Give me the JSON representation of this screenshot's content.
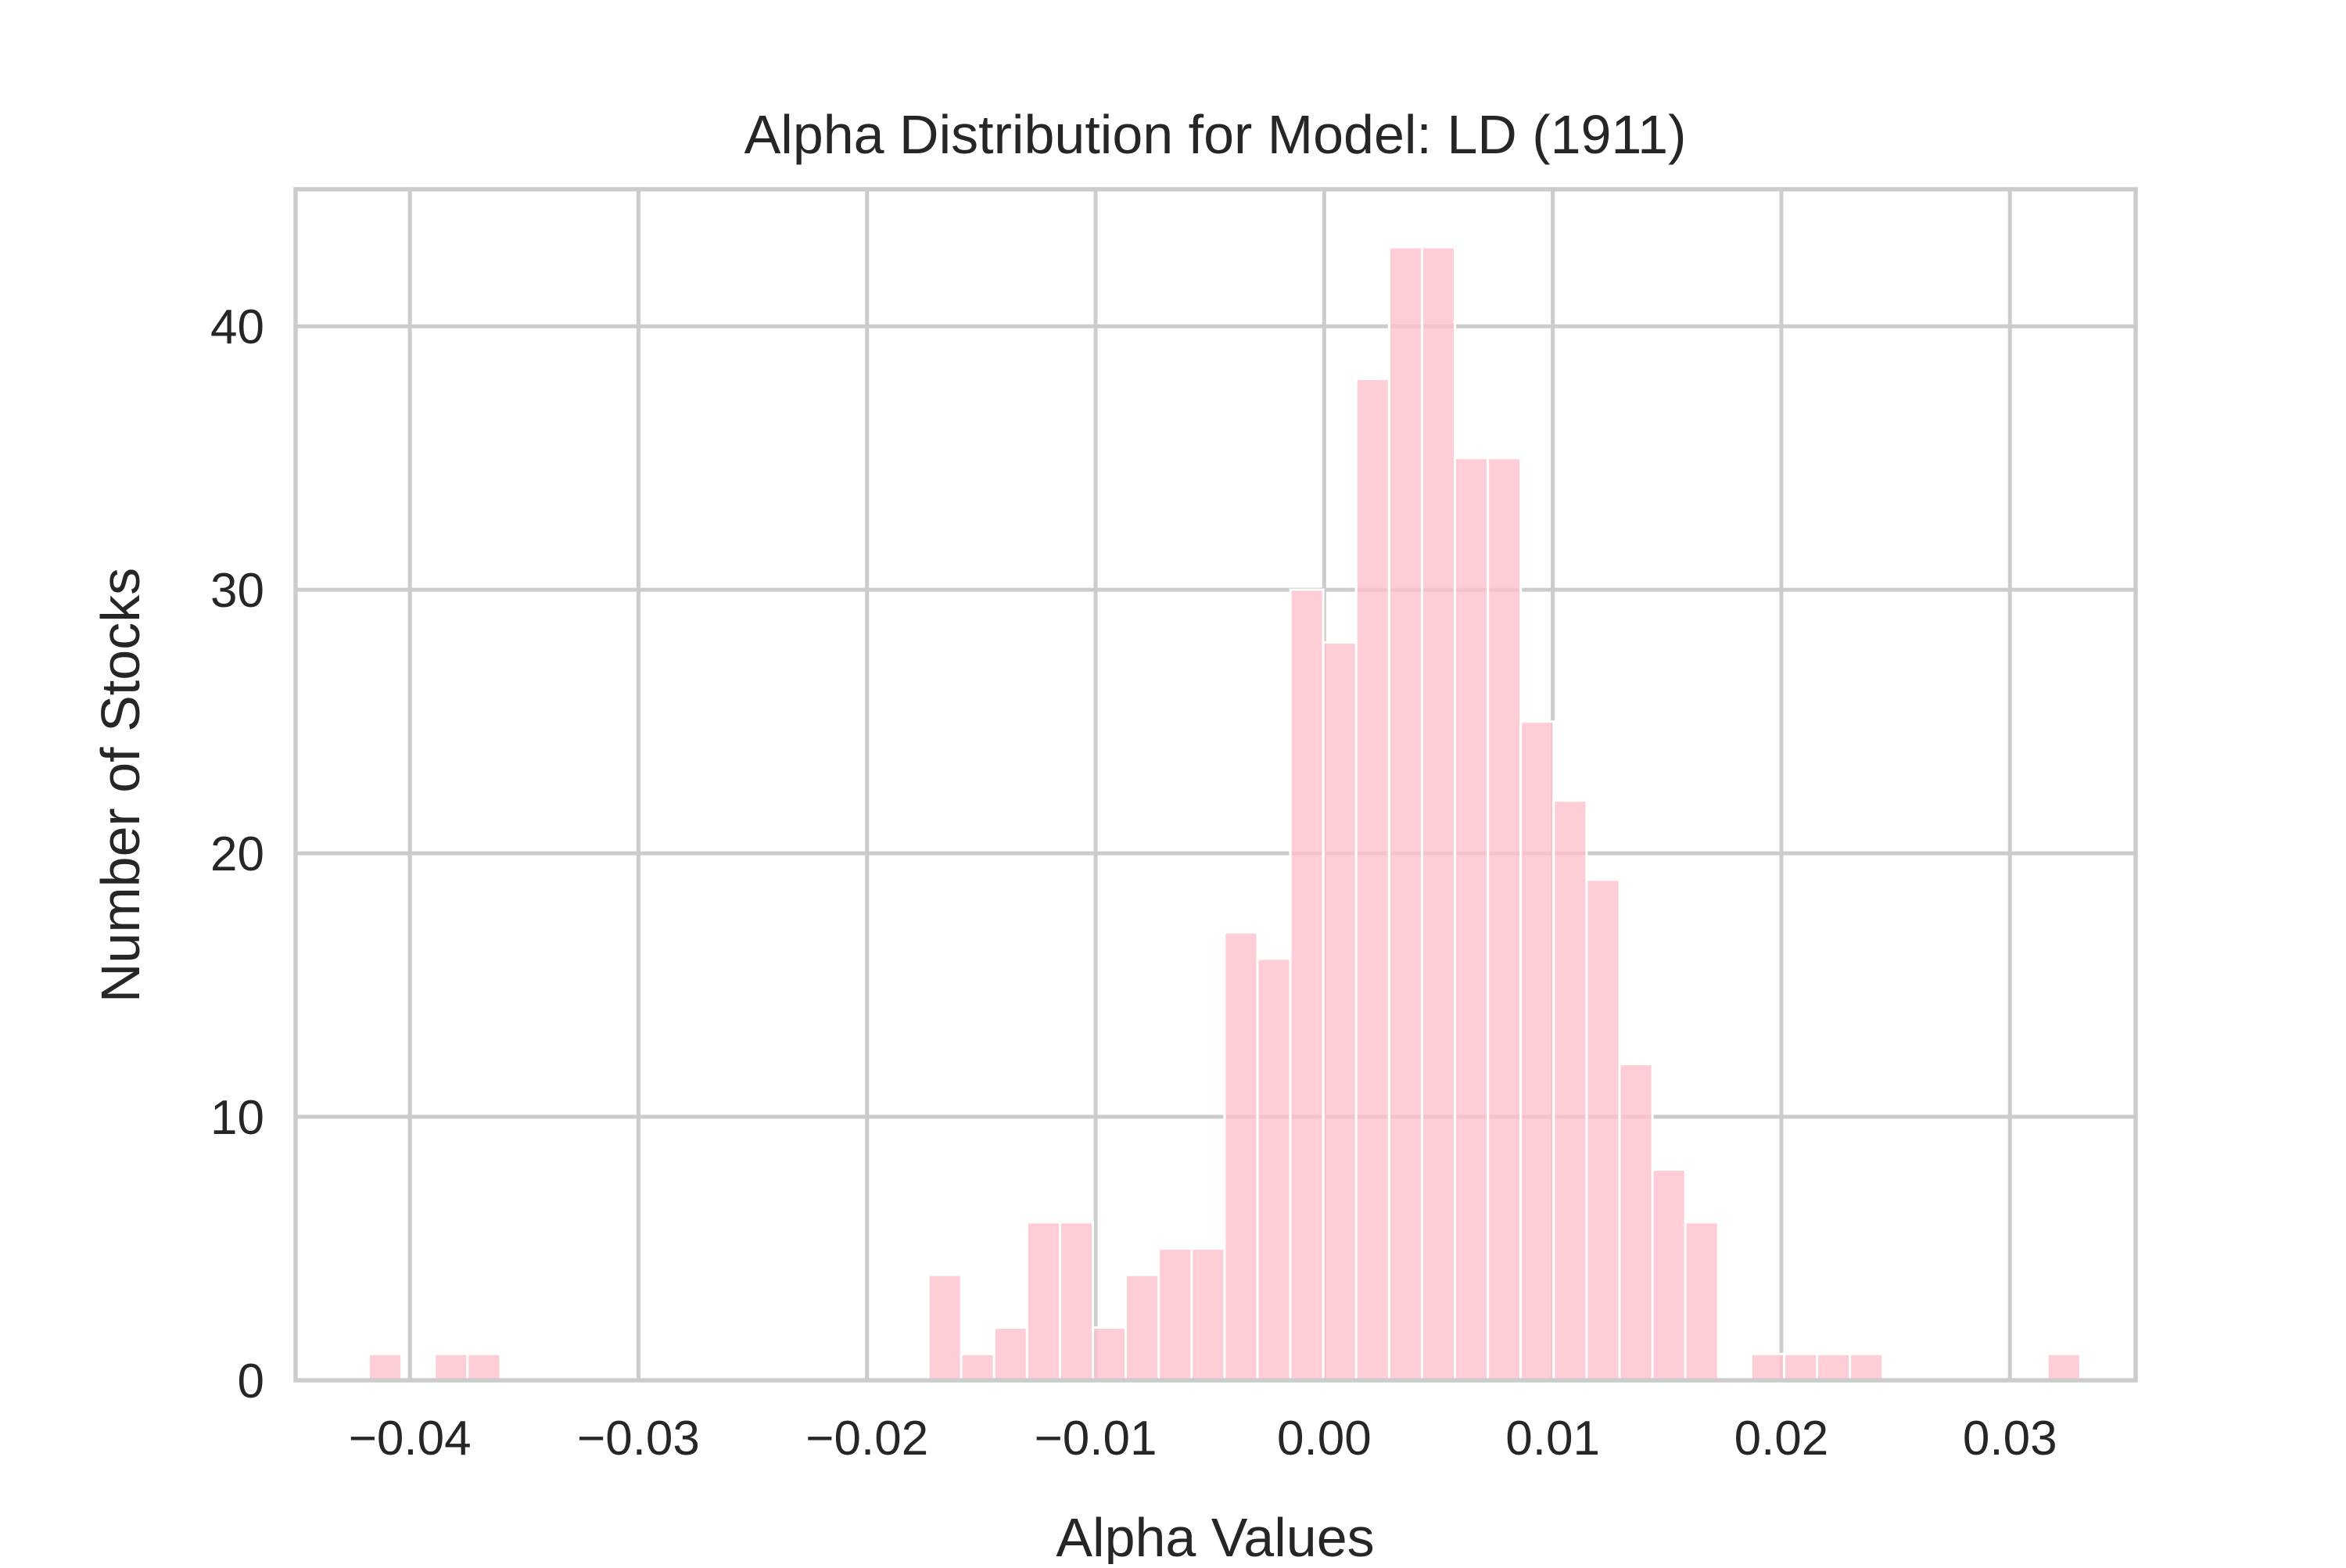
{
  "chart_data": {
    "type": "bar",
    "title": "Alpha Distribution for Model: LD (1911)",
    "xlabel": "Alpha Values",
    "ylabel": "Number of Stocks",
    "xlim": [
      -0.045,
      0.0355
    ],
    "ylim": [
      0,
      45.2
    ],
    "xticks": [
      -0.04,
      -0.03,
      -0.02,
      -0.01,
      0.0,
      0.01,
      0.02,
      0.03
    ],
    "xtick_labels": [
      "−0.04",
      "−0.03",
      "−0.02",
      "−0.01",
      "0.00",
      "0.01",
      "0.02",
      "0.03"
    ],
    "yticks": [
      0,
      10,
      20,
      30,
      40
    ],
    "ytick_labels": [
      "0",
      "10",
      "20",
      "30",
      "40"
    ],
    "grid": true,
    "bar_color": "#ffc0cb",
    "bin_start": -0.0418,
    "bin_width": 0.00144,
    "values": [
      1,
      0,
      1,
      1,
      0,
      0,
      0,
      0,
      0,
      0,
      0,
      0,
      0,
      0,
      0,
      0,
      0,
      4,
      1,
      2,
      6,
      6,
      2,
      4,
      5,
      5,
      17,
      16,
      30,
      28,
      38,
      43,
      43,
      35,
      35,
      25,
      22,
      19,
      12,
      8,
      6,
      0,
      1,
      1,
      1,
      1,
      0,
      0,
      0,
      0,
      0,
      1
    ]
  }
}
